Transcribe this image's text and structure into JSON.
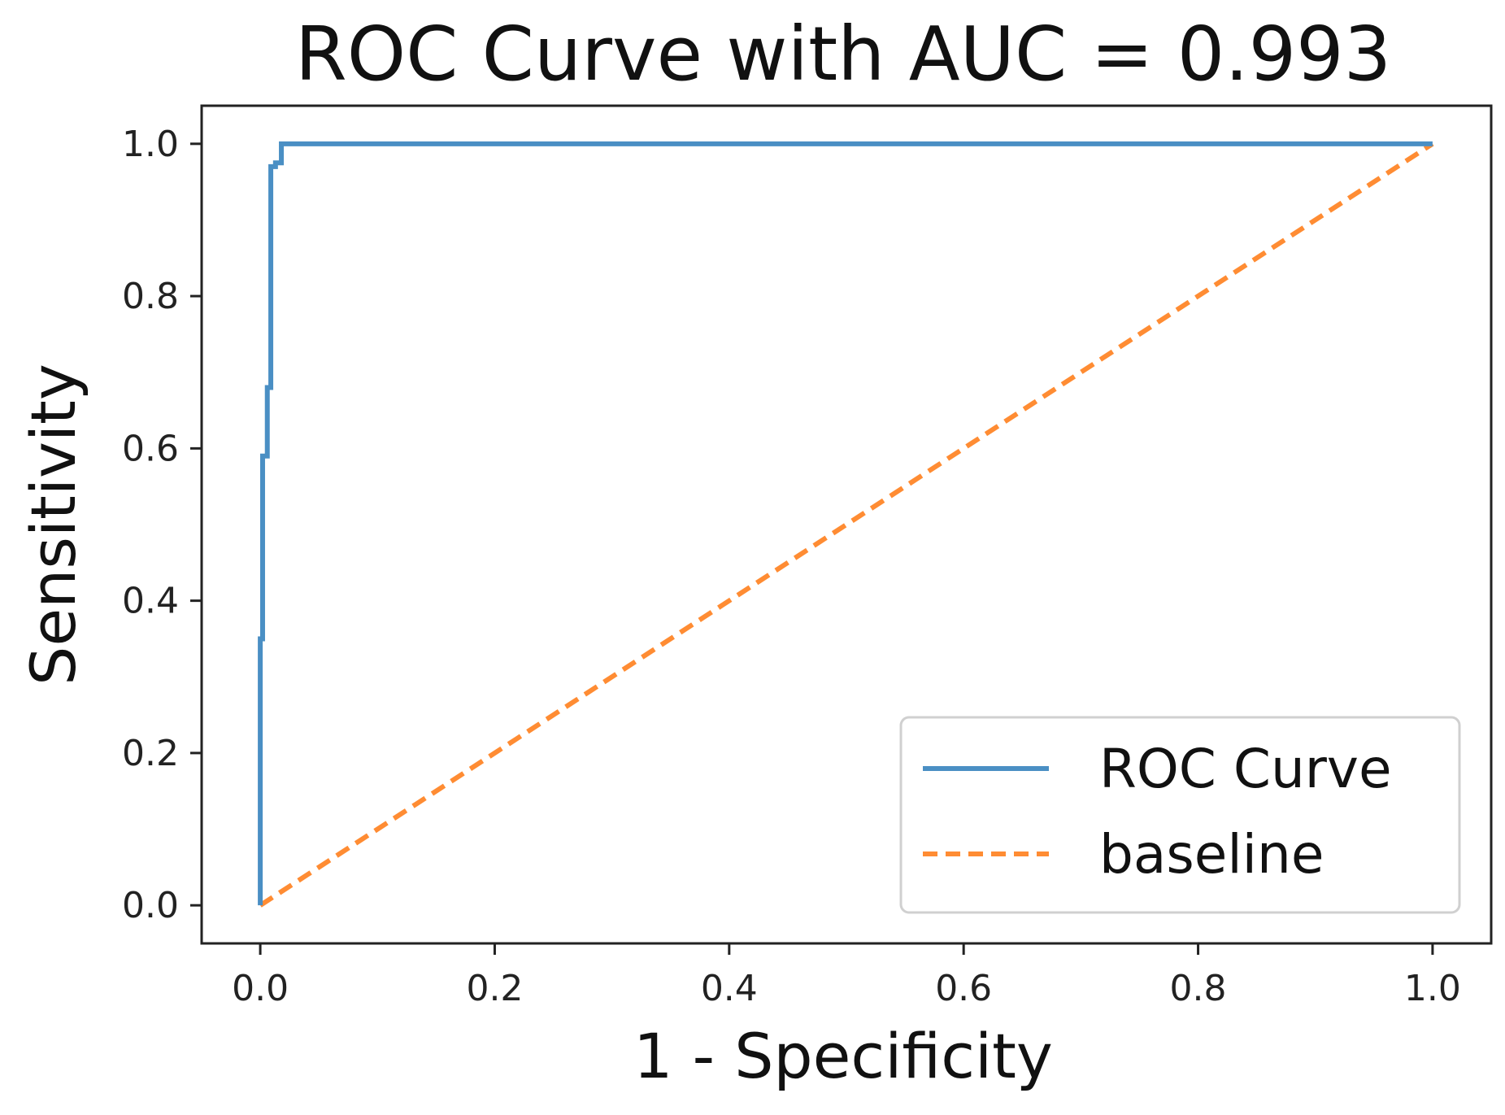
{
  "chart_data": {
    "type": "line",
    "title": "ROC Curve with AUC = 0.993",
    "xlabel": "1 - Specificity",
    "ylabel": "Sensitivity",
    "xlim": [
      -0.05,
      1.05
    ],
    "ylim": [
      -0.05,
      1.05
    ],
    "xticks": [
      0.0,
      0.2,
      0.4,
      0.6,
      0.8,
      1.0
    ],
    "yticks": [
      0.0,
      0.2,
      0.4,
      0.6,
      0.8,
      1.0
    ],
    "xtick_labels": [
      "0.0",
      "0.2",
      "0.4",
      "0.6",
      "0.8",
      "1.0"
    ],
    "ytick_labels": [
      "0.0",
      "0.2",
      "0.4",
      "0.6",
      "0.8",
      "1.0"
    ],
    "grid": false,
    "legend_position": "bottom-right",
    "series": [
      {
        "name": "ROC Curve",
        "style": "solid",
        "color": "#4a8fc4",
        "x": [
          0.0,
          0.0,
          0.002,
          0.002,
          0.006,
          0.006,
          0.009,
          0.009,
          0.013,
          0.013,
          0.018,
          0.018,
          1.0
        ],
        "y": [
          0.0,
          0.35,
          0.35,
          0.59,
          0.59,
          0.68,
          0.68,
          0.97,
          0.97,
          0.975,
          0.975,
          1.0,
          1.0
        ]
      },
      {
        "name": "baseline",
        "style": "dashed",
        "color": "#ff8c33",
        "x": [
          0.0,
          1.0
        ],
        "y": [
          0.0,
          1.0
        ]
      }
    ]
  }
}
